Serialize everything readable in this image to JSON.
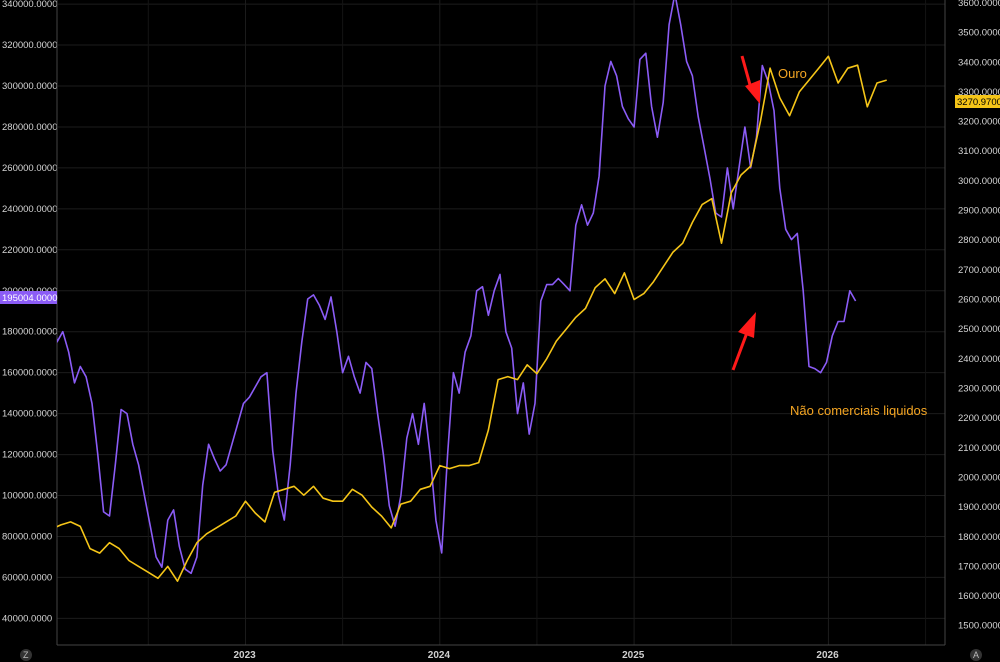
{
  "chart_data": {
    "type": "line",
    "title": "",
    "x_ticks": [
      "2023",
      "2024",
      "2025",
      "2026"
    ],
    "x_range": [
      2022.03,
      2026.6
    ],
    "y_left": {
      "range": [
        27000,
        342000
      ],
      "ticks": [
        "40000.0000",
        "60000.0000",
        "80000.0000",
        "100000.0000",
        "120000.0000",
        "140000.0000",
        "160000.0000",
        "180000.0000",
        "200000.0000",
        "220000.0000",
        "240000.0000",
        "260000.0000",
        "280000.0000",
        "300000.0000",
        "320000.0000",
        "340000.0000"
      ],
      "last_value_label": "195004.0000"
    },
    "y_right": {
      "range": [
        1435,
        3610
      ],
      "ticks": [
        "1500.0000",
        "1600.0000",
        "1700.0000",
        "1800.0000",
        "1900.0000",
        "2000.0000",
        "2100.0000",
        "2200.0000",
        "2300.0000",
        "2400.0000",
        "2500.0000",
        "2600.0000",
        "2700.0000",
        "2800.0000",
        "2900.0000",
        "3000.0000",
        "3100.0000",
        "3200.0000",
        "3300.0000",
        "3400.0000",
        "3500.0000",
        "3600.0000"
      ],
      "last_value_label": "3270.9700"
    },
    "grid": true,
    "legend": "none",
    "series": [
      {
        "name": "Não comerciais liquidos",
        "axis": "left",
        "color": "#8b5cf6",
        "x": [
          2022.0,
          2022.03,
          2022.06,
          2022.09,
          2022.12,
          2022.15,
          2022.18,
          2022.21,
          2022.24,
          2022.27,
          2022.3,
          2022.33,
          2022.36,
          2022.39,
          2022.42,
          2022.45,
          2022.48,
          2022.51,
          2022.54,
          2022.57,
          2022.6,
          2022.63,
          2022.66,
          2022.69,
          2022.72,
          2022.75,
          2022.78,
          2022.81,
          2022.84,
          2022.87,
          2022.9,
          2022.93,
          2022.96,
          2022.99,
          2023.02,
          2023.05,
          2023.08,
          2023.11,
          2023.14,
          2023.17,
          2023.2,
          2023.23,
          2023.26,
          2023.29,
          2023.32,
          2023.35,
          2023.38,
          2023.41,
          2023.44,
          2023.47,
          2023.5,
          2023.53,
          2023.56,
          2023.59,
          2023.62,
          2023.65,
          2023.68,
          2023.71,
          2023.74,
          2023.77,
          2023.8,
          2023.83,
          2023.86,
          2023.89,
          2023.92,
          2023.95,
          2023.98,
          2024.01,
          2024.04,
          2024.07,
          2024.1,
          2024.13,
          2024.16,
          2024.19,
          2024.22,
          2024.25,
          2024.28,
          2024.31,
          2024.34,
          2024.37,
          2024.4,
          2024.43,
          2024.46,
          2024.49,
          2024.52,
          2024.55,
          2024.58,
          2024.61,
          2024.64,
          2024.67,
          2024.7,
          2024.73,
          2024.76,
          2024.79,
          2024.82,
          2024.85,
          2024.88,
          2024.91,
          2024.94,
          2024.97,
          2025.0,
          2025.03,
          2025.06,
          2025.09,
          2025.12,
          2025.15,
          2025.18,
          2025.21,
          2025.24,
          2025.27,
          2025.3,
          2025.33,
          2025.36,
          2025.39,
          2025.42,
          2025.45,
          2025.48
        ],
        "y": [
          194000,
          175000,
          180000,
          170000,
          155000,
          163000,
          158000,
          145000,
          120000,
          92000,
          90000,
          115000,
          142000,
          140000,
          125000,
          115000,
          100000,
          85000,
          70000,
          65000,
          88000,
          93000,
          75000,
          64000,
          62000,
          70000,
          105000,
          125000,
          118000,
          112000,
          115000,
          125000,
          135000,
          145000,
          148000,
          153000,
          158000,
          160000,
          122000,
          100000,
          88000,
          115000,
          150000,
          175000,
          196000,
          198000,
          193000,
          186000,
          197000,
          180000,
          160000,
          168000,
          158000,
          150000,
          165000,
          162000,
          140000,
          120000,
          95000,
          85000,
          100000,
          128000,
          140000,
          125000,
          145000,
          120000,
          88000,
          72000,
          120000,
          160000,
          150000,
          170000,
          178000,
          200000,
          202000,
          188000,
          200000,
          208000,
          180000,
          172000,
          140000,
          155000,
          130000,
          145000,
          195000,
          203000,
          203000,
          206000,
          203000,
          200000,
          232000,
          242000,
          232000,
          238000,
          256000,
          300000,
          312000,
          305000,
          290000,
          284000,
          280000,
          313000,
          316000,
          290000,
          275000,
          292000,
          330000,
          345000,
          330000,
          312000,
          305000,
          285000,
          270000,
          255000,
          238000,
          236000,
          260000
        ],
        "x2": [
          2025.51,
          2025.54,
          2025.57,
          2025.6,
          2025.63,
          2025.66,
          2025.69,
          2025.72,
          2025.75,
          2025.78,
          2025.81,
          2025.84,
          2025.87,
          2025.9,
          2025.93,
          2025.96,
          2025.99,
          2026.02,
          2026.05,
          2026.08,
          2026.11,
          2026.14,
          2026.17,
          2026.2,
          2026.23,
          2026.26,
          2026.29,
          2026.32,
          2026.35
        ],
        "y2": [
          240000,
          260000,
          280000,
          260000,
          275000,
          310000,
          302000,
          288000,
          250000,
          230000,
          225000,
          228000,
          200000,
          163000,
          162000,
          160000,
          165000,
          178000,
          185000,
          185000,
          200000,
          195000,
          null,
          null,
          null,
          null,
          null,
          null,
          null
        ]
      },
      {
        "name": "Ouro",
        "axis": "right",
        "color": "#f5c518",
        "x": [
          2022.0,
          2022.05,
          2022.1,
          2022.15,
          2022.2,
          2022.25,
          2022.3,
          2022.35,
          2022.4,
          2022.45,
          2022.5,
          2022.55,
          2022.6,
          2022.65,
          2022.7,
          2022.75,
          2022.8,
          2022.85,
          2022.9,
          2022.95,
          2023.0,
          2023.05,
          2023.1,
          2023.15,
          2023.2,
          2023.25,
          2023.3,
          2023.35,
          2023.4,
          2023.45,
          2023.5,
          2023.55,
          2023.6,
          2023.65,
          2023.7,
          2023.75,
          2023.8,
          2023.85,
          2023.9,
          2023.95,
          2024.0,
          2024.05,
          2024.1,
          2024.15,
          2024.2,
          2024.25,
          2024.3,
          2024.35,
          2024.4,
          2024.45,
          2024.5,
          2024.55,
          2024.6,
          2024.65,
          2024.7,
          2024.75,
          2024.8,
          2024.85,
          2024.9,
          2024.95,
          2025.0,
          2025.05,
          2025.1,
          2025.15,
          2025.2,
          2025.25,
          2025.3,
          2025.35,
          2025.4,
          2025.45,
          2025.5,
          2025.55,
          2025.6,
          2025.65,
          2025.7,
          2025.75,
          2025.8,
          2025.85,
          2025.9,
          2025.95,
          2026.0,
          2026.05,
          2026.1,
          2026.15,
          2026.2,
          2026.25,
          2026.3
        ],
        "y": [
          1825,
          1840,
          1850,
          1835,
          1760,
          1745,
          1780,
          1760,
          1720,
          1700,
          1680,
          1660,
          1700,
          1650,
          1720,
          1780,
          1810,
          1830,
          1850,
          1870,
          1920,
          1880,
          1850,
          1950,
          1960,
          1970,
          1940,
          1970,
          1930,
          1920,
          1920,
          1960,
          1940,
          1900,
          1870,
          1830,
          1910,
          1920,
          1960,
          1970,
          2040,
          2030,
          2040,
          2040,
          2050,
          2160,
          2330,
          2340,
          2330,
          2380,
          2350,
          2400,
          2460,
          2500,
          2540,
          2570,
          2640,
          2670,
          2620,
          2690,
          2600,
          2620,
          2660,
          2710,
          2760,
          2790,
          2860,
          2920,
          2940,
          2790,
          2960,
          3020,
          3050,
          3200,
          3380,
          3280,
          3220,
          3300,
          3340,
          3380,
          3420,
          3330,
          3380,
          3390,
          3250,
          3330,
          3340
        ],
        "x2": [],
        "y2": []
      }
    ],
    "annotations": [
      {
        "text": "Ouro",
        "color": "#f5a623"
      },
      {
        "text": "Não comerciais liquidos",
        "color": "#f5a623"
      }
    ]
  },
  "ui": {
    "corner_left": "Z",
    "corner_right": "A"
  }
}
